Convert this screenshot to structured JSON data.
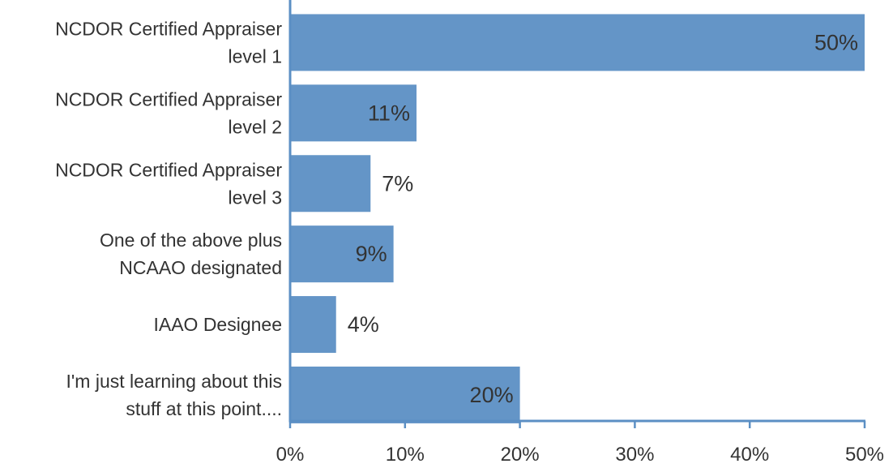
{
  "chart_data": {
    "type": "bar",
    "orientation": "horizontal",
    "categories": [
      [
        "NCDOR Certified Appraiser",
        "level 1"
      ],
      [
        "NCDOR Certified Appraiser",
        "level 2"
      ],
      [
        "NCDOR Certified Appraiser",
        "level 3"
      ],
      [
        "One of the above plus",
        "NCAAO designated"
      ],
      [
        "IAAO Designee"
      ],
      [
        "I'm just learning about this",
        "stuff at this point...."
      ]
    ],
    "values": [
      50,
      11,
      7,
      9,
      4,
      20
    ],
    "value_labels": [
      "50%",
      "11%",
      "7%",
      "9%",
      "4%",
      "20%"
    ],
    "xlim": [
      0,
      50
    ],
    "xticks": [
      0,
      10,
      20,
      30,
      40,
      50
    ],
    "xtick_labels": [
      "0%",
      "10%",
      "20%",
      "30%",
      "40%",
      "50%"
    ],
    "grid": false,
    "colors": {
      "bar": "#6495c7",
      "axis": "#5b8fc4",
      "text": "#333333"
    }
  }
}
